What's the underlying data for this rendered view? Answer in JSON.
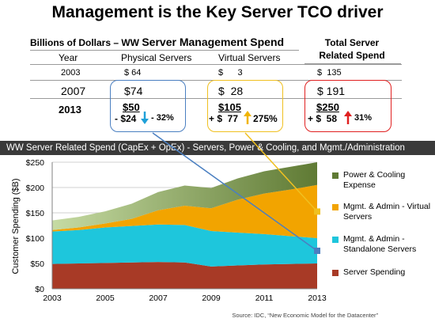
{
  "title": "Management is the Key Server TCO driver",
  "table": {
    "heading_prefix": "Billions of Dollars – WW ",
    "heading_main": "Server Management Spend",
    "total_heading_line1": "Total  Server",
    "total_heading_line2": "Related Spend",
    "col_year": "Year",
    "col_physical": "Physical Servers",
    "col_virtual": "Virtual Servers",
    "row_2003": {
      "year": "2003",
      "physical": "$ 64",
      "virtual": "$      3",
      "total": "$  135"
    },
    "row_2007": {
      "year": "2007",
      "physical": "$74",
      "virtual": "$  28",
      "total": "$ 191"
    },
    "row_2013": {
      "year": "2013",
      "physical": "$50",
      "physical_change": "- $24",
      "physical_pct": "- 32%",
      "virtual": "$105",
      "virtual_change": "+ $  77",
      "virtual_pct": "275%",
      "total": "$250",
      "total_change": "+ $  58",
      "total_pct": "31%"
    }
  },
  "banner": "WW Server Related Spend (CapEx + OpEx) - Servers, Power & Cooling, and Mgmt./Administration",
  "source": "Source:  IDC, “New Economic Model for the Datacenter”",
  "colors": {
    "server": "#a83a26",
    "standalone": "#1ec6dc",
    "virtual": "#f2a400",
    "power": "#5f7a34",
    "power_light": "#c6dba3",
    "physical_box": "#4a7fc1",
    "virtual_box": "#f0c020",
    "total_box": "#e02020",
    "down_arrow": "#1ea0d8",
    "up_arrow": "#f0b400",
    "red_arrow": "#e02020"
  },
  "chart_data": {
    "type": "area",
    "stacked": true,
    "ylabel": "Customer Spending ($B)",
    "yticks": [
      "$0",
      "$50",
      "$100",
      "$150",
      "$200",
      "$250"
    ],
    "ylim": [
      0,
      250
    ],
    "xticks": [
      "2003",
      "2005",
      "2007",
      "2009",
      "2011",
      "2013"
    ],
    "x": [
      2003,
      2004,
      2005,
      2006,
      2007,
      2008,
      2009,
      2010,
      2011,
      2012,
      2013
    ],
    "series": [
      {
        "name": "Server Spending",
        "values": [
          49,
          50,
          51,
          52,
          53,
          52,
          44,
          46,
          48,
          49,
          50
        ]
      },
      {
        "name": "Mgmt. & Admin - Standalone Servers",
        "values": [
          64,
          66,
          70,
          72,
          74,
          74,
          70,
          65,
          60,
          55,
          50
        ]
      },
      {
        "name": "Mgmt. & Admin - Virtual Servers",
        "values": [
          3,
          5,
          8,
          14,
          28,
          38,
          45,
          65,
          80,
          92,
          105
        ]
      },
      {
        "name": "Power & Cooling Expense",
        "values": [
          19,
          21,
          24,
          30,
          36,
          40,
          40,
          42,
          44,
          45,
          45
        ]
      }
    ],
    "grid": true,
    "legend_position": "right"
  }
}
